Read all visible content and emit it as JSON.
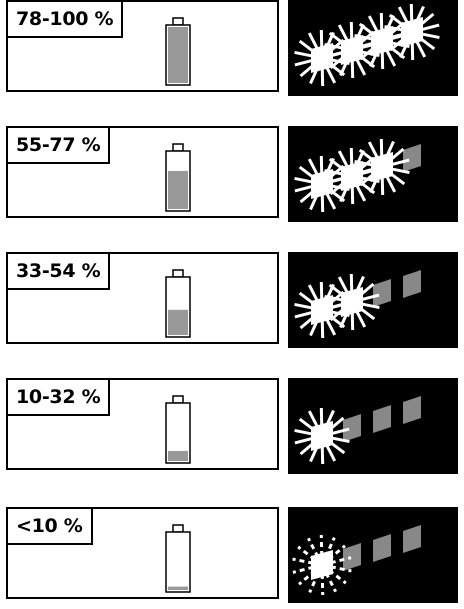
{
  "colors": {
    "fill": "#999999",
    "outline": "#000000",
    "led_on": "#ffffff",
    "led_off": "#888888",
    "led_panel": "#000000"
  },
  "levels": [
    {
      "label": "78-100 %",
      "charge_fraction": 1.0,
      "leds_on": 4,
      "blinking": false
    },
    {
      "label": "55-77 %",
      "charge_fraction": 0.68,
      "leds_on": 3,
      "blinking": false
    },
    {
      "label": "33-54 %",
      "charge_fraction": 0.45,
      "leds_on": 2,
      "blinking": false
    },
    {
      "label": "10-32 %",
      "charge_fraction": 0.18,
      "leds_on": 1,
      "blinking": false
    },
    {
      "label": "<10 %",
      "charge_fraction": 0.06,
      "leds_on": 1,
      "blinking": true
    }
  ]
}
